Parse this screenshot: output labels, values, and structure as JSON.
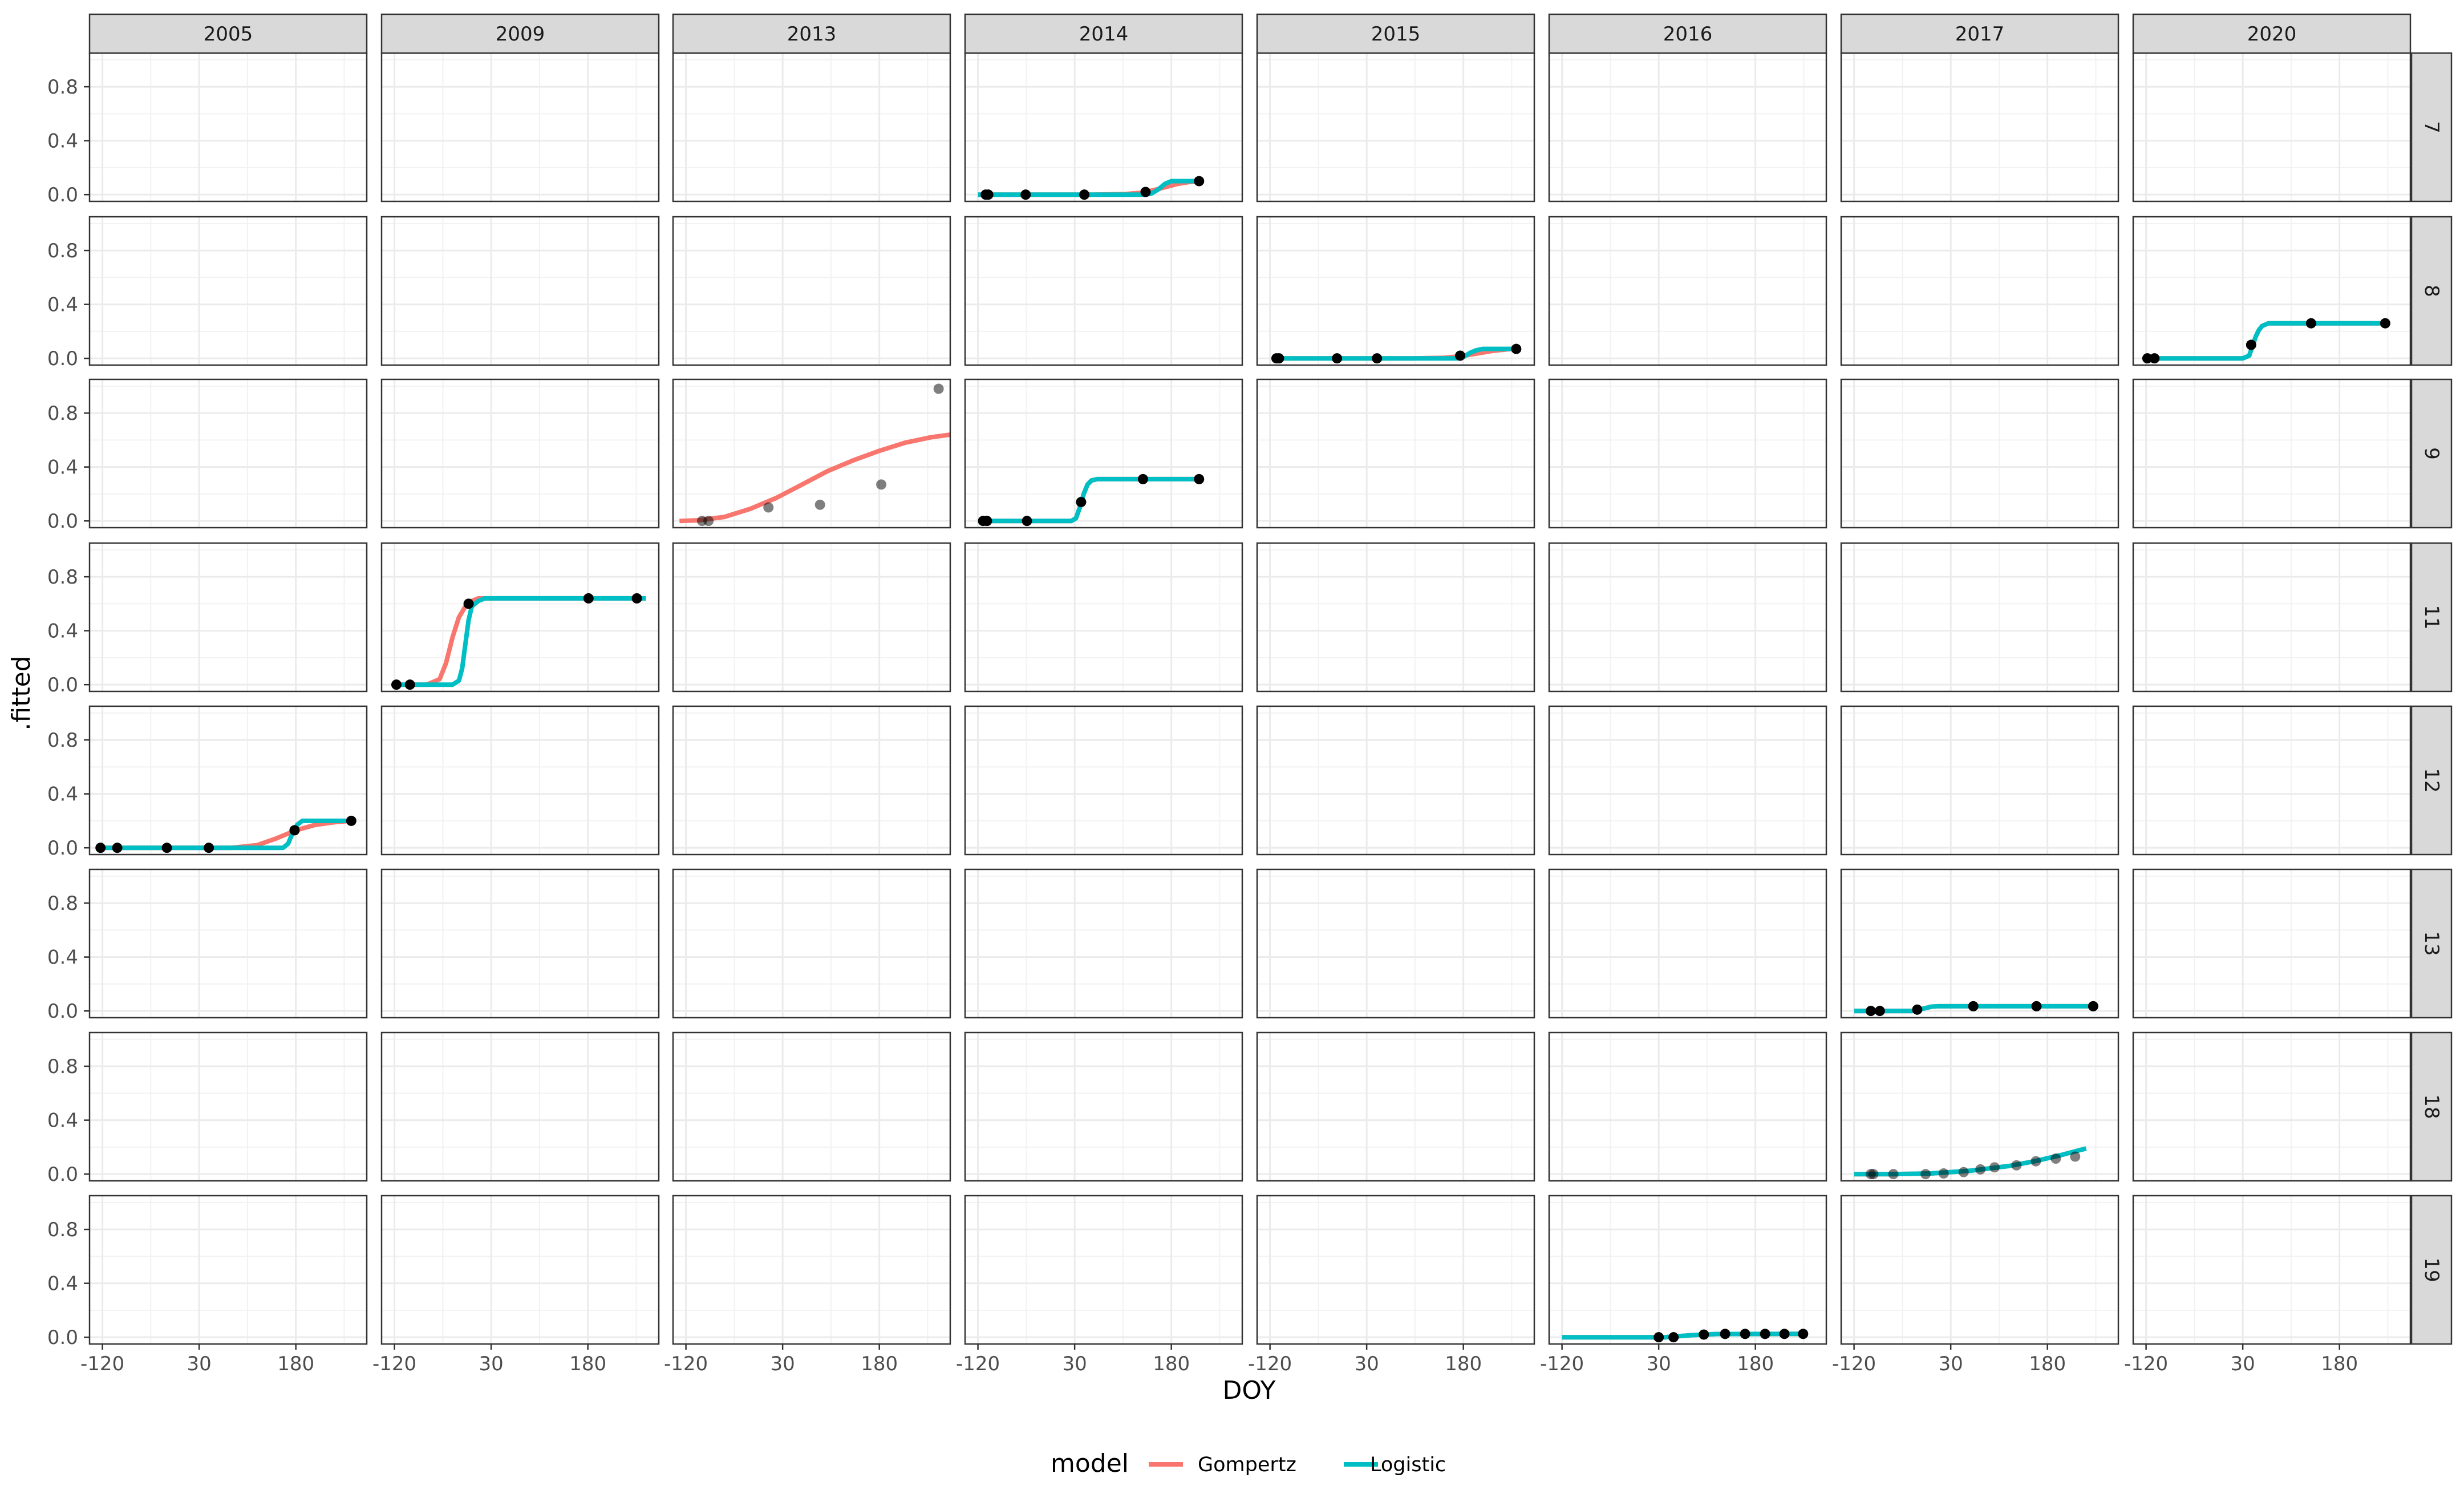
{
  "chart_data": {
    "type": "line",
    "facet_columns": [
      "2005",
      "2009",
      "2013",
      "2014",
      "2015",
      "2016",
      "2017",
      "2020"
    ],
    "facet_rows": [
      "7",
      "8",
      "9",
      "11",
      "12",
      "13",
      "18",
      "19"
    ],
    "xlabel": "DOY",
    "ylabel": ".fitted",
    "x_ticks": [
      -120,
      30,
      180
    ],
    "x_tick_labels": [
      "-120",
      "30",
      "180"
    ],
    "xlim": [
      -140,
      290
    ],
    "y_ticks": [
      0.0,
      0.4,
      0.8
    ],
    "y_tick_labels": [
      "0.0",
      "0.4",
      "0.8"
    ],
    "ylim": [
      -0.05,
      1.05
    ],
    "grid": true,
    "legend": {
      "title": "model",
      "position": "bottom",
      "entries": [
        {
          "name": "Gompertz",
          "color": "#F8766D"
        },
        {
          "name": "Logistic",
          "color": "#00BFC4"
        }
      ]
    },
    "panels": [
      {
        "row": "7",
        "col": "2014",
        "points": [
          [
            -108,
            0.0
          ],
          [
            -104,
            0.0
          ],
          [
            -46,
            0.0
          ],
          [
            45,
            0.0
          ],
          [
            140,
            0.02
          ],
          [
            223,
            0.1
          ]
        ],
        "curves": [
          {
            "model": "Gompertz",
            "x": [
              -120,
              60,
              110,
              130,
              150,
              170,
              190,
              210,
              230
            ],
            "y": [
              0.0,
              0.0,
              0.005,
              0.012,
              0.03,
              0.055,
              0.08,
              0.095,
              0.1
            ]
          },
          {
            "model": "Logistic",
            "x": [
              -120,
              140,
              150,
              160,
              170,
              180,
              230
            ],
            "y": [
              0.0,
              0.0,
              0.01,
              0.04,
              0.08,
              0.1,
              0.1
            ]
          }
        ]
      },
      {
        "row": "8",
        "col": "2015",
        "points": [
          [
            -110,
            0.0
          ],
          [
            -106,
            0.0
          ],
          [
            -16,
            0.0
          ],
          [
            46,
            0.0
          ],
          [
            175,
            0.02
          ],
          [
            262,
            0.07
          ]
        ],
        "curves": [
          {
            "model": "Gompertz",
            "x": [
              -115,
              100,
              150,
              175,
              200,
              225,
              250,
              262
            ],
            "y": [
              0.0,
              0.0,
              0.004,
              0.015,
              0.035,
              0.055,
              0.068,
              0.07
            ]
          },
          {
            "model": "Logistic",
            "x": [
              -115,
              170,
              180,
              190,
              200,
              210,
              262
            ],
            "y": [
              0.0,
              0.0,
              0.01,
              0.04,
              0.06,
              0.07,
              0.07
            ]
          }
        ]
      },
      {
        "row": "8",
        "col": "2020",
        "points": [
          [
            -118,
            0.0
          ],
          [
            -107,
            0.0
          ],
          [
            43,
            0.1
          ],
          [
            136,
            0.26
          ],
          [
            251,
            0.26
          ]
        ],
        "curves": [
          {
            "model": "Gompertz",
            "x": [
              -118,
              30,
              40,
              45,
              50,
              55,
              60,
              70,
              251
            ],
            "y": [
              0.0,
              0.0,
              0.02,
              0.09,
              0.16,
              0.21,
              0.24,
              0.26,
              0.26
            ]
          },
          {
            "model": "Logistic",
            "x": [
              -118,
              30,
              40,
              45,
              50,
              55,
              60,
              70,
              251
            ],
            "y": [
              0.0,
              0.0,
              0.02,
              0.09,
              0.16,
              0.21,
              0.24,
              0.26,
              0.26
            ]
          }
        ]
      },
      {
        "row": "9",
        "col": "2013",
        "points": [
          [
            -95,
            0.0
          ],
          [
            -85,
            0.0
          ],
          [
            8,
            0.1
          ],
          [
            88,
            0.12
          ],
          [
            183,
            0.27
          ],
          [
            272,
            0.98
          ]
        ],
        "points_faded": true,
        "curves": [
          {
            "model": "Gompertz",
            "x": [
              -130,
              -100,
              -60,
              -20,
              20,
              60,
              100,
              140,
              180,
              220,
              260,
              290
            ],
            "y": [
              0.0,
              0.005,
              0.03,
              0.09,
              0.17,
              0.27,
              0.37,
              0.45,
              0.52,
              0.58,
              0.62,
              0.64
            ]
          }
        ]
      },
      {
        "row": "9",
        "col": "2014",
        "points": [
          [
            -112,
            0.0
          ],
          [
            -106,
            0.0
          ],
          [
            -44,
            0.0
          ],
          [
            40,
            0.14
          ],
          [
            136,
            0.31
          ],
          [
            223,
            0.31
          ]
        ],
        "curves": [
          {
            "model": "Gompertz",
            "x": [
              -120,
              25,
              32,
              38,
              44,
              50,
              56,
              65,
              230
            ],
            "y": [
              0.0,
              0.0,
              0.02,
              0.1,
              0.2,
              0.27,
              0.3,
              0.31,
              0.31
            ]
          },
          {
            "model": "Logistic",
            "x": [
              -120,
              25,
              32,
              38,
              44,
              50,
              56,
              65,
              230
            ],
            "y": [
              0.0,
              0.0,
              0.02,
              0.1,
              0.2,
              0.27,
              0.3,
              0.31,
              0.31
            ]
          }
        ]
      },
      {
        "row": "11",
        "col": "2009",
        "points": [
          [
            -117,
            0.0
          ],
          [
            -96,
            0.0
          ],
          [
            -5,
            0.6
          ],
          [
            181,
            0.64
          ],
          [
            256,
            0.64
          ]
        ],
        "curves": [
          {
            "model": "Gompertz",
            "x": [
              -120,
              -70,
              -50,
              -40,
              -30,
              -20,
              -10,
              0,
              10,
              270
            ],
            "y": [
              0.0,
              0.0,
              0.04,
              0.16,
              0.35,
              0.5,
              0.58,
              0.62,
              0.64,
              0.64
            ]
          },
          {
            "model": "Logistic",
            "x": [
              -120,
              -30,
              -20,
              -15,
              -10,
              -5,
              0,
              10,
              20,
              270
            ],
            "y": [
              0.0,
              0.0,
              0.03,
              0.12,
              0.3,
              0.48,
              0.58,
              0.62,
              0.64,
              0.64
            ]
          }
        ]
      },
      {
        "row": "12",
        "col": "2005",
        "points": [
          [
            -123,
            0.0
          ],
          [
            -97,
            0.0
          ],
          [
            -20,
            0.0
          ],
          [
            45,
            0.0
          ],
          [
            178,
            0.13
          ],
          [
            266,
            0.2
          ]
        ],
        "curves": [
          {
            "model": "Gompertz",
            "x": [
              -123,
              80,
              120,
              150,
              180,
              210,
              240,
              266
            ],
            "y": [
              0.0,
              0.0,
              0.02,
              0.07,
              0.13,
              0.17,
              0.19,
              0.2
            ]
          },
          {
            "model": "Logistic",
            "x": [
              -123,
              160,
              168,
              175,
              182,
              190,
              266
            ],
            "y": [
              0.0,
              0.0,
              0.03,
              0.11,
              0.17,
              0.2,
              0.2
            ]
          }
        ]
      },
      {
        "row": "13",
        "col": "2017",
        "points": [
          [
            -94,
            0.0
          ],
          [
            -80,
            0.0
          ],
          [
            -22,
            0.01
          ],
          [
            65,
            0.035
          ],
          [
            163,
            0.035
          ],
          [
            251,
            0.035
          ]
        ],
        "curves": [
          {
            "model": "Gompertz",
            "x": [
              -120,
              -30,
              -10,
              0,
              10,
              251
            ],
            "y": [
              0.0,
              0.0,
              0.02,
              0.032,
              0.035,
              0.035
            ]
          },
          {
            "model": "Logistic",
            "x": [
              -120,
              -30,
              -10,
              0,
              10,
              251
            ],
            "y": [
              0.0,
              0.0,
              0.02,
              0.032,
              0.035,
              0.035
            ]
          }
        ]
      },
      {
        "row": "18",
        "col": "2017",
        "points": [
          [
            -94,
            0.0
          ],
          [
            -90,
            0.0
          ],
          [
            -59,
            0.0
          ],
          [
            -9,
            0.0
          ],
          [
            19,
            0.005
          ],
          [
            50,
            0.015
          ],
          [
            76,
            0.035
          ],
          [
            98,
            0.05
          ],
          [
            132,
            0.065
          ],
          [
            162,
            0.095
          ],
          [
            193,
            0.115
          ],
          [
            223,
            0.13
          ]
        ],
        "points_faded": true,
        "curves": [
          {
            "model": "Gompertz",
            "x": [
              -120,
              -60,
              0,
              60,
              120,
              160,
              200,
              240
            ],
            "y": [
              0.0,
              0.0,
              0.005,
              0.025,
              0.06,
              0.095,
              0.14,
              0.19
            ]
          },
          {
            "model": "Logistic",
            "x": [
              -120,
              -60,
              0,
              60,
              120,
              160,
              200,
              240
            ],
            "y": [
              0.0,
              0.0,
              0.005,
              0.025,
              0.06,
              0.095,
              0.14,
              0.19
            ]
          }
        ]
      },
      {
        "row": "19",
        "col": "2016",
        "points": [
          [
            30,
            0.0
          ],
          [
            53,
            0.0
          ],
          [
            100,
            0.02
          ],
          [
            133,
            0.025
          ],
          [
            164,
            0.025
          ],
          [
            195,
            0.025
          ],
          [
            225,
            0.025
          ],
          [
            254,
            0.025
          ]
        ],
        "curves": [
          {
            "model": "Gompertz",
            "x": [
              -120,
              40,
              80,
              120,
              260
            ],
            "y": [
              0.0,
              0.0,
              0.015,
              0.024,
              0.025
            ]
          },
          {
            "model": "Logistic",
            "x": [
              -120,
              40,
              80,
              120,
              260
            ],
            "y": [
              0.0,
              0.0,
              0.015,
              0.024,
              0.025
            ]
          }
        ]
      }
    ]
  }
}
